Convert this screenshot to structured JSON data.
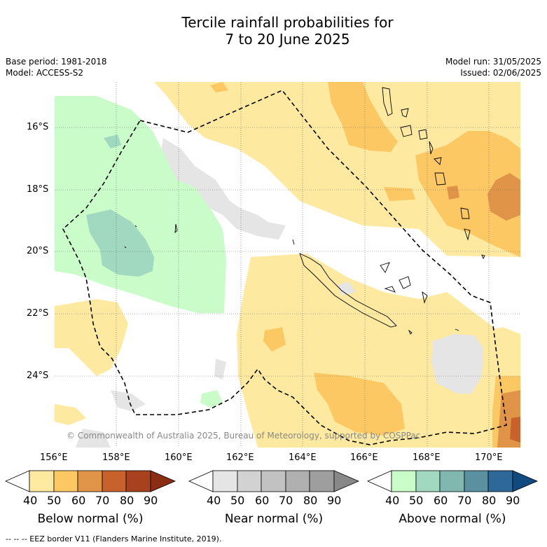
{
  "title_line1": "Tercile rainfall probabilities for",
  "title_line2": "7 to 20 June 2025",
  "base_period": "Base period: 1981-2018",
  "model": "Model: ACCESS-S2",
  "model_run": "Model run: 31/05/2025",
  "issued": "Issued: 02/06/2025",
  "copyright": "© Commonwealth of Australia 2025, Bureau of Meteorology, supported by COSPPac",
  "lon_ticks": [
    "156°E",
    "158°E",
    "160°E",
    "162°E",
    "164°E",
    "166°E",
    "168°E",
    "170°E"
  ],
  "lat_ticks": [
    "16°S",
    "18°S",
    "20°S",
    "22°S",
    "24°S"
  ],
  "colorbars": [
    {
      "title": "Below normal (%)",
      "labels": [
        "40",
        "50",
        "60",
        "70",
        "80",
        "90"
      ],
      "colors": [
        "#ffffff",
        "#fde9a0",
        "#fcc864",
        "#e09448",
        "#c8622c",
        "#a8411e",
        "#8a2d12"
      ]
    },
    {
      "title": "Near normal (%)",
      "labels": [
        "40",
        "50",
        "60",
        "70",
        "80",
        "90"
      ],
      "colors": [
        "#ffffff",
        "#e5e5e5",
        "#d2d2d2",
        "#c2c2c2",
        "#b0b0b0",
        "#9e9e9e",
        "#888888"
      ]
    },
    {
      "title": "Above normal (%)",
      "labels": [
        "40",
        "50",
        "60",
        "70",
        "80",
        "90"
      ],
      "colors": [
        "#ffffff",
        "#c9fcc8",
        "#a0d8c0",
        "#80b8b0",
        "#5a90a0",
        "#2e6898",
        "#104a7e"
      ]
    }
  ],
  "footnote": "--  --  -- EEZ border V11 (Flanders Marine Institute, 2019)."
}
